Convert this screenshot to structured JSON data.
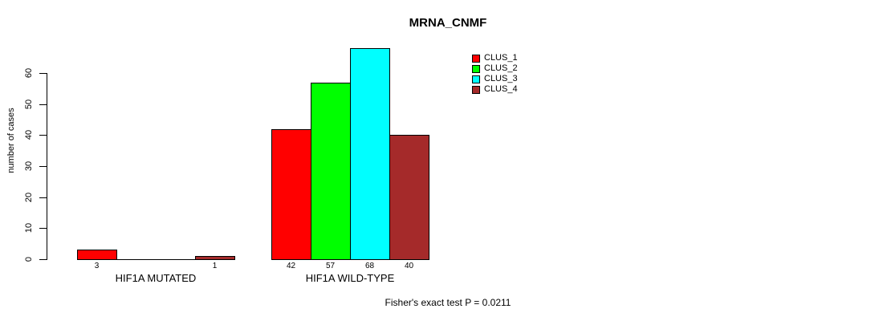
{
  "chart_data": {
    "type": "bar",
    "title": "MRNA_CNMF",
    "xlabel": "",
    "ylabel": "number of cases",
    "ylim": [
      0,
      60
    ],
    "yticks": [
      0,
      10,
      20,
      30,
      40,
      50,
      60
    ],
    "grid": false,
    "categories": [
      "HIF1A MUTATED",
      "HIF1A WILD-TYPE"
    ],
    "series": [
      {
        "name": "CLUS_1",
        "color": "#FF0000",
        "values": [
          3,
          42
        ]
      },
      {
        "name": "CLUS_2",
        "color": "#00FF00",
        "values": [
          0,
          57
        ]
      },
      {
        "name": "CLUS_3",
        "color": "#00FFFF",
        "values": [
          0,
          68
        ]
      },
      {
        "name": "CLUS_4",
        "color": "#A52A2A",
        "values": [
          1,
          40
        ]
      }
    ],
    "bar_labels": [
      [
        "3",
        "",
        "",
        "1"
      ],
      [
        "42",
        "57",
        "68",
        "40"
      ]
    ],
    "legend_position": "top-right",
    "annotation": "Fisher's exact test P = 0.0211",
    "axis_color": "#000000",
    "background": "#FFFFFF"
  }
}
